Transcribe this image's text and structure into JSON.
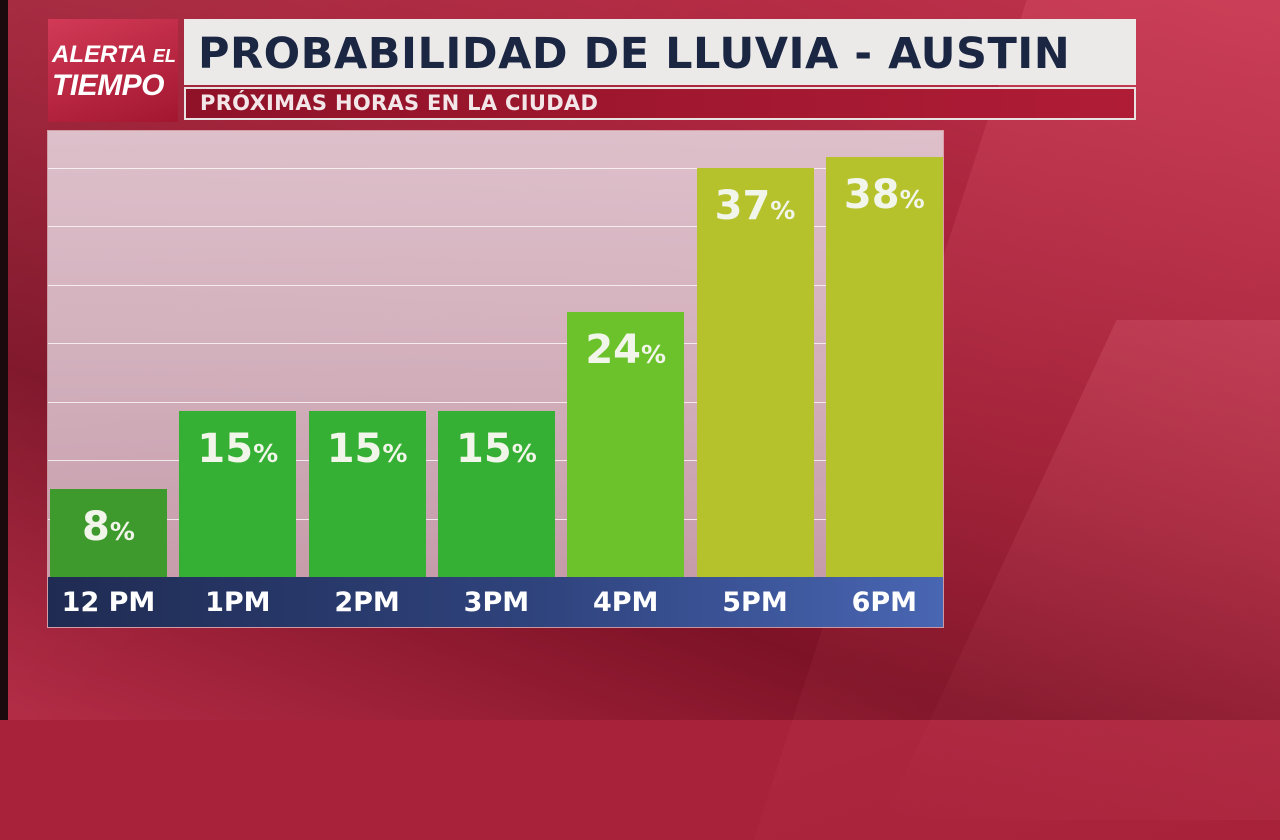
{
  "header": {
    "logo_line1": "ALERTA",
    "logo_line1_small": "EL",
    "logo_line2": "TIEMPO",
    "title": "PROBABILIDAD DE LLUVIA - AUSTIN",
    "subtitle": "PRÓXIMAS HORAS EN LA CIUDAD"
  },
  "chart_data": {
    "type": "bar",
    "categories": [
      "12 PM",
      "1PM",
      "2PM",
      "3PM",
      "4PM",
      "5PM",
      "6PM"
    ],
    "values": [
      8,
      15,
      15,
      15,
      24,
      37,
      38
    ],
    "value_suffix": "%",
    "ylim": [
      0,
      40
    ],
    "grid": true,
    "bar_colors": [
      "#3e9a2c",
      "#36b034",
      "#36b034",
      "#36b034",
      "#6cc22a",
      "#b5c22b",
      "#b5c22b"
    ]
  },
  "colors": {
    "title_text": "#1b2742",
    "subtitle_bg": "#a01830",
    "axis_bg": "#2f437d"
  }
}
